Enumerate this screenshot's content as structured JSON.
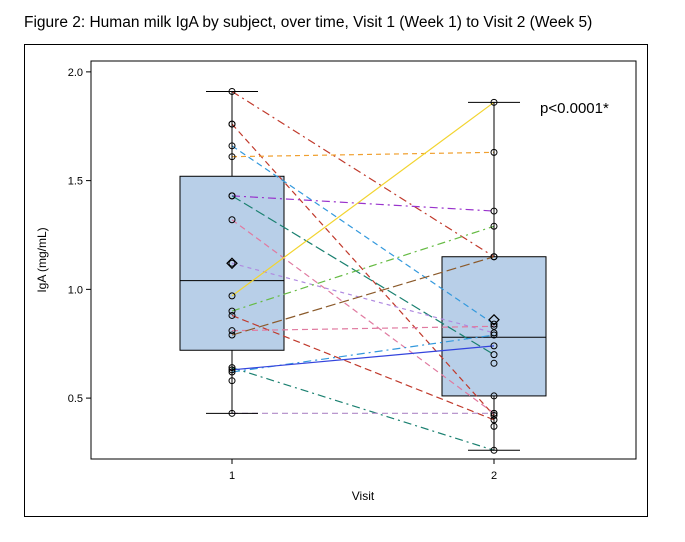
{
  "figure_title": "Figure 2: Human milk IgA by subject, over time, Visit 1 (Week 1) to Visit 2 (Week 5)",
  "chart_data": {
    "type": "box",
    "xlabel": "Visit",
    "ylabel": "IgA (mg/mL)",
    "categories": [
      "1",
      "2"
    ],
    "ylim": [
      0.22,
      2.05
    ],
    "yticks": [
      0.5,
      1.0,
      1.5,
      2.0
    ],
    "ytick_labels": [
      "0.5",
      "1.0",
      "1.5",
      "2.0"
    ],
    "annotation": "p<0.0001*",
    "grid": false,
    "boxes": [
      {
        "category": "1",
        "min": 0.43,
        "q1": 0.72,
        "median": 1.04,
        "q3": 1.52,
        "max": 1.91,
        "mean": 1.12
      },
      {
        "category": "2",
        "min": 0.26,
        "q1": 0.51,
        "median": 0.78,
        "q3": 1.15,
        "max": 1.86,
        "mean": 0.86
      }
    ],
    "subjects": [
      {
        "v1": 1.91,
        "v2": 1.15,
        "color": "#c0392b",
        "dash": "8,4,2,4"
      },
      {
        "v1": 1.76,
        "v2": 0.42,
        "color": "#c0392b",
        "dash": "6,4"
      },
      {
        "v1": 1.66,
        "v2": 0.84,
        "color": "#3399dd",
        "dash": "6,4"
      },
      {
        "v1": 1.61,
        "v2": 1.63,
        "color": "#f0a030",
        "dash": "5,4"
      },
      {
        "v1": 1.43,
        "v2": 1.36,
        "color": "#9933cc",
        "dash": "8,4,2,4"
      },
      {
        "v1": 1.43,
        "v2": 0.7,
        "color": "#1a8070",
        "dash": "10,4"
      },
      {
        "v1": 1.32,
        "v2": 0.43,
        "color": "#e07aa0",
        "dash": "6,4"
      },
      {
        "v1": 1.12,
        "v2": 0.8,
        "color": "#b08ae0",
        "dash": "4,4"
      },
      {
        "v1": 0.97,
        "v2": 1.86,
        "color": "#f2d430",
        "dash": ""
      },
      {
        "v1": 0.9,
        "v2": 1.29,
        "color": "#66bb44",
        "dash": "8,4,2,4"
      },
      {
        "v1": 0.88,
        "v2": 0.4,
        "color": "#c0392b",
        "dash": "7,4"
      },
      {
        "v1": 0.81,
        "v2": 0.83,
        "color": "#e07aa0",
        "dash": "6,4"
      },
      {
        "v1": 0.79,
        "v2": 1.15,
        "color": "#8b5a2b",
        "dash": "10,4"
      },
      {
        "v1": 0.64,
        "v2": 0.26,
        "color": "#1a8070",
        "dash": "8,4,2,4"
      },
      {
        "v1": 0.62,
        "v2": 0.79,
        "color": "#3399dd",
        "dash": "8,4,2,4"
      },
      {
        "v1": 0.63,
        "v2": 0.74,
        "color": "#3344dd",
        "dash": ""
      },
      {
        "v1": 0.43,
        "v2": 0.43,
        "color": "#b08ac8",
        "dash": "6,4"
      }
    ],
    "extra_points": [
      {
        "category": "1",
        "value": 1.76
      },
      {
        "category": "1",
        "value": 0.58
      },
      {
        "category": "2",
        "value": 0.51
      },
      {
        "category": "2",
        "value": 0.66
      },
      {
        "category": "2",
        "value": 0.37
      }
    ]
  }
}
